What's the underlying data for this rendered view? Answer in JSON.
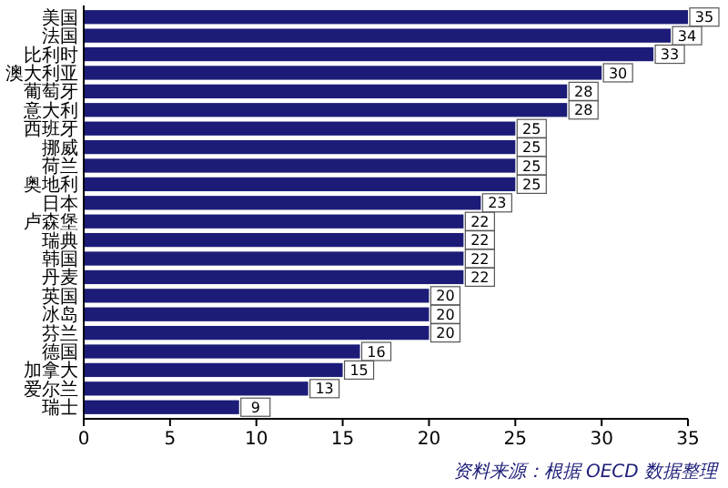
{
  "chart_data": {
    "type": "bar",
    "orientation": "horizontal",
    "categories": [
      "美国",
      "法国",
      "比利时",
      "澳大利亚",
      "葡萄牙",
      "意大利",
      "西班牙",
      "挪威",
      "荷兰",
      "奥地利",
      "日本",
      "卢森堡",
      "瑞典",
      "韩国",
      "丹麦",
      "英国",
      "冰岛",
      "芬兰",
      "德国",
      "加拿大",
      "爱尔兰",
      "瑞士"
    ],
    "values": [
      35,
      34,
      33,
      30,
      28,
      28,
      25,
      25,
      25,
      25,
      23,
      22,
      22,
      22,
      22,
      20,
      20,
      20,
      16,
      15,
      13,
      9
    ],
    "color": "#1c1c78",
    "xlim": [
      0,
      35
    ],
    "xticks": [
      0,
      5,
      10,
      15,
      20,
      25,
      30,
      35
    ],
    "data_labels": true,
    "grid": false,
    "annotations": [
      "资料来源：根据 OECD 数据整理"
    ]
  }
}
